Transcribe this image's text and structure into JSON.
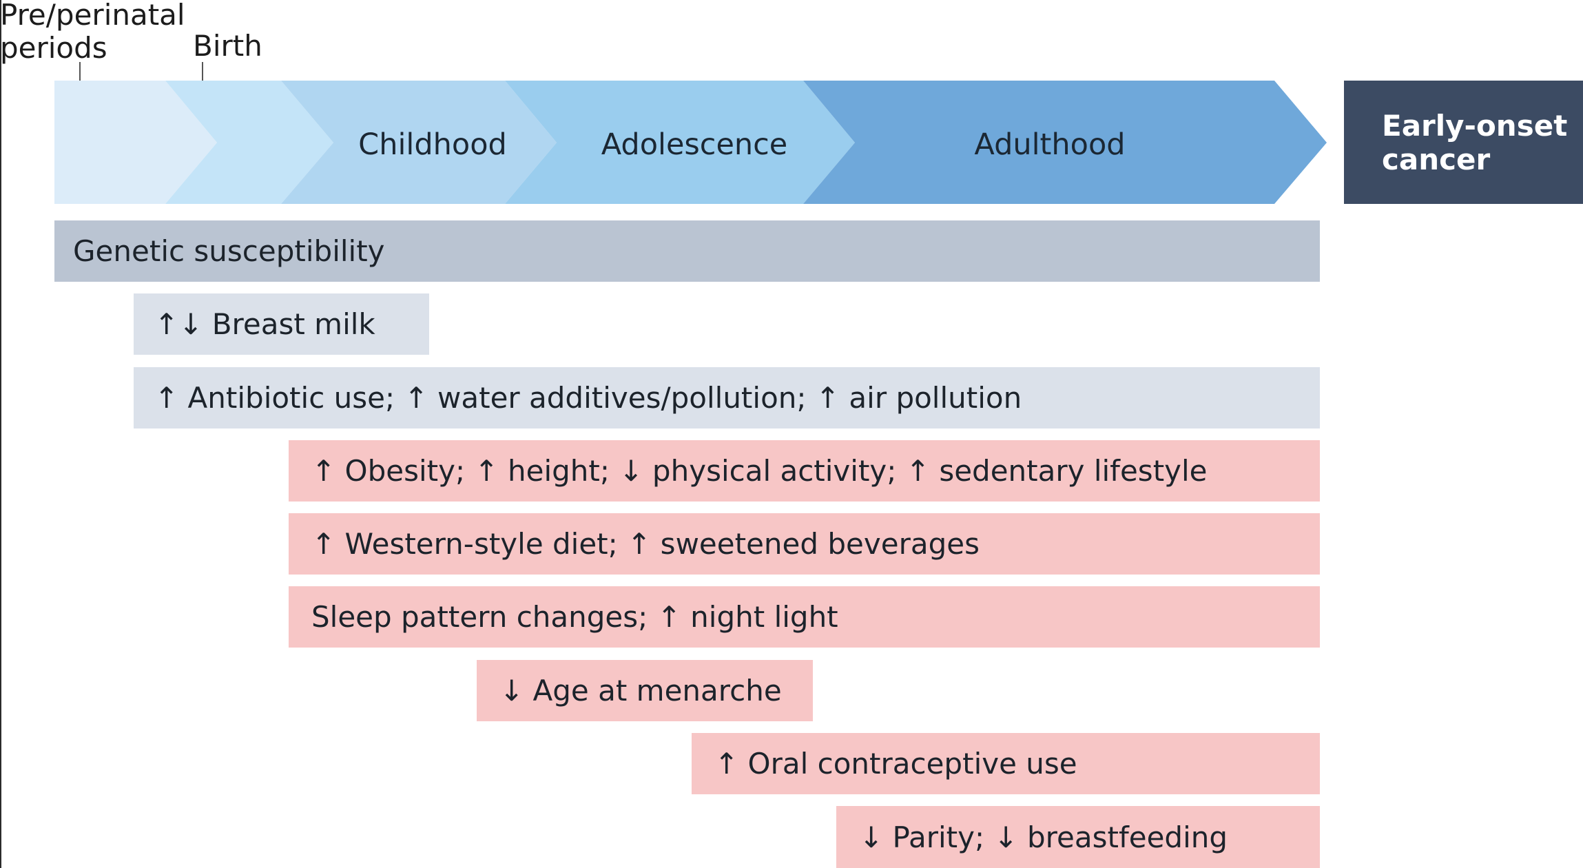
{
  "top_labels": {
    "pre_perinatal": "Pre/perinatal\nperiods",
    "birth": "Birth"
  },
  "stages": [
    {
      "label": "",
      "color": "#dcecf9"
    },
    {
      "label": "",
      "color": "#c4e4f8"
    },
    {
      "label": "Childhood",
      "color": "#b0d6f1"
    },
    {
      "label": "Adolescence",
      "color": "#9acdee"
    },
    {
      "label": "Adulthood",
      "color": "#6fa8da"
    }
  ],
  "outcome": {
    "label": "Early-onset\ncancer",
    "color": "#3c4b63"
  },
  "factors": {
    "genetic": "Genetic susceptibility",
    "breast_milk": "↑↓ Breast milk",
    "antibiotic": "↑ Antibiotic use; ↑ water additives/pollution; ↑ air pollution",
    "obesity": "↑ Obesity; ↑ height; ↓ physical activity; ↑ sedentary lifestyle",
    "diet": "↑ Western-style diet; ↑ sweetened beverages",
    "sleep": "Sleep pattern changes; ↑ night light",
    "menarche": "↓ Age at menarche",
    "oral": "↑ Oral contraceptive use",
    "parity": "↓ Parity; ↓ breastfeeding"
  },
  "colors": {
    "genetic_bar": "#bac4d2",
    "environment_bar": "#dbe1ea",
    "lifestyle_bar": "#f7c6c6"
  }
}
